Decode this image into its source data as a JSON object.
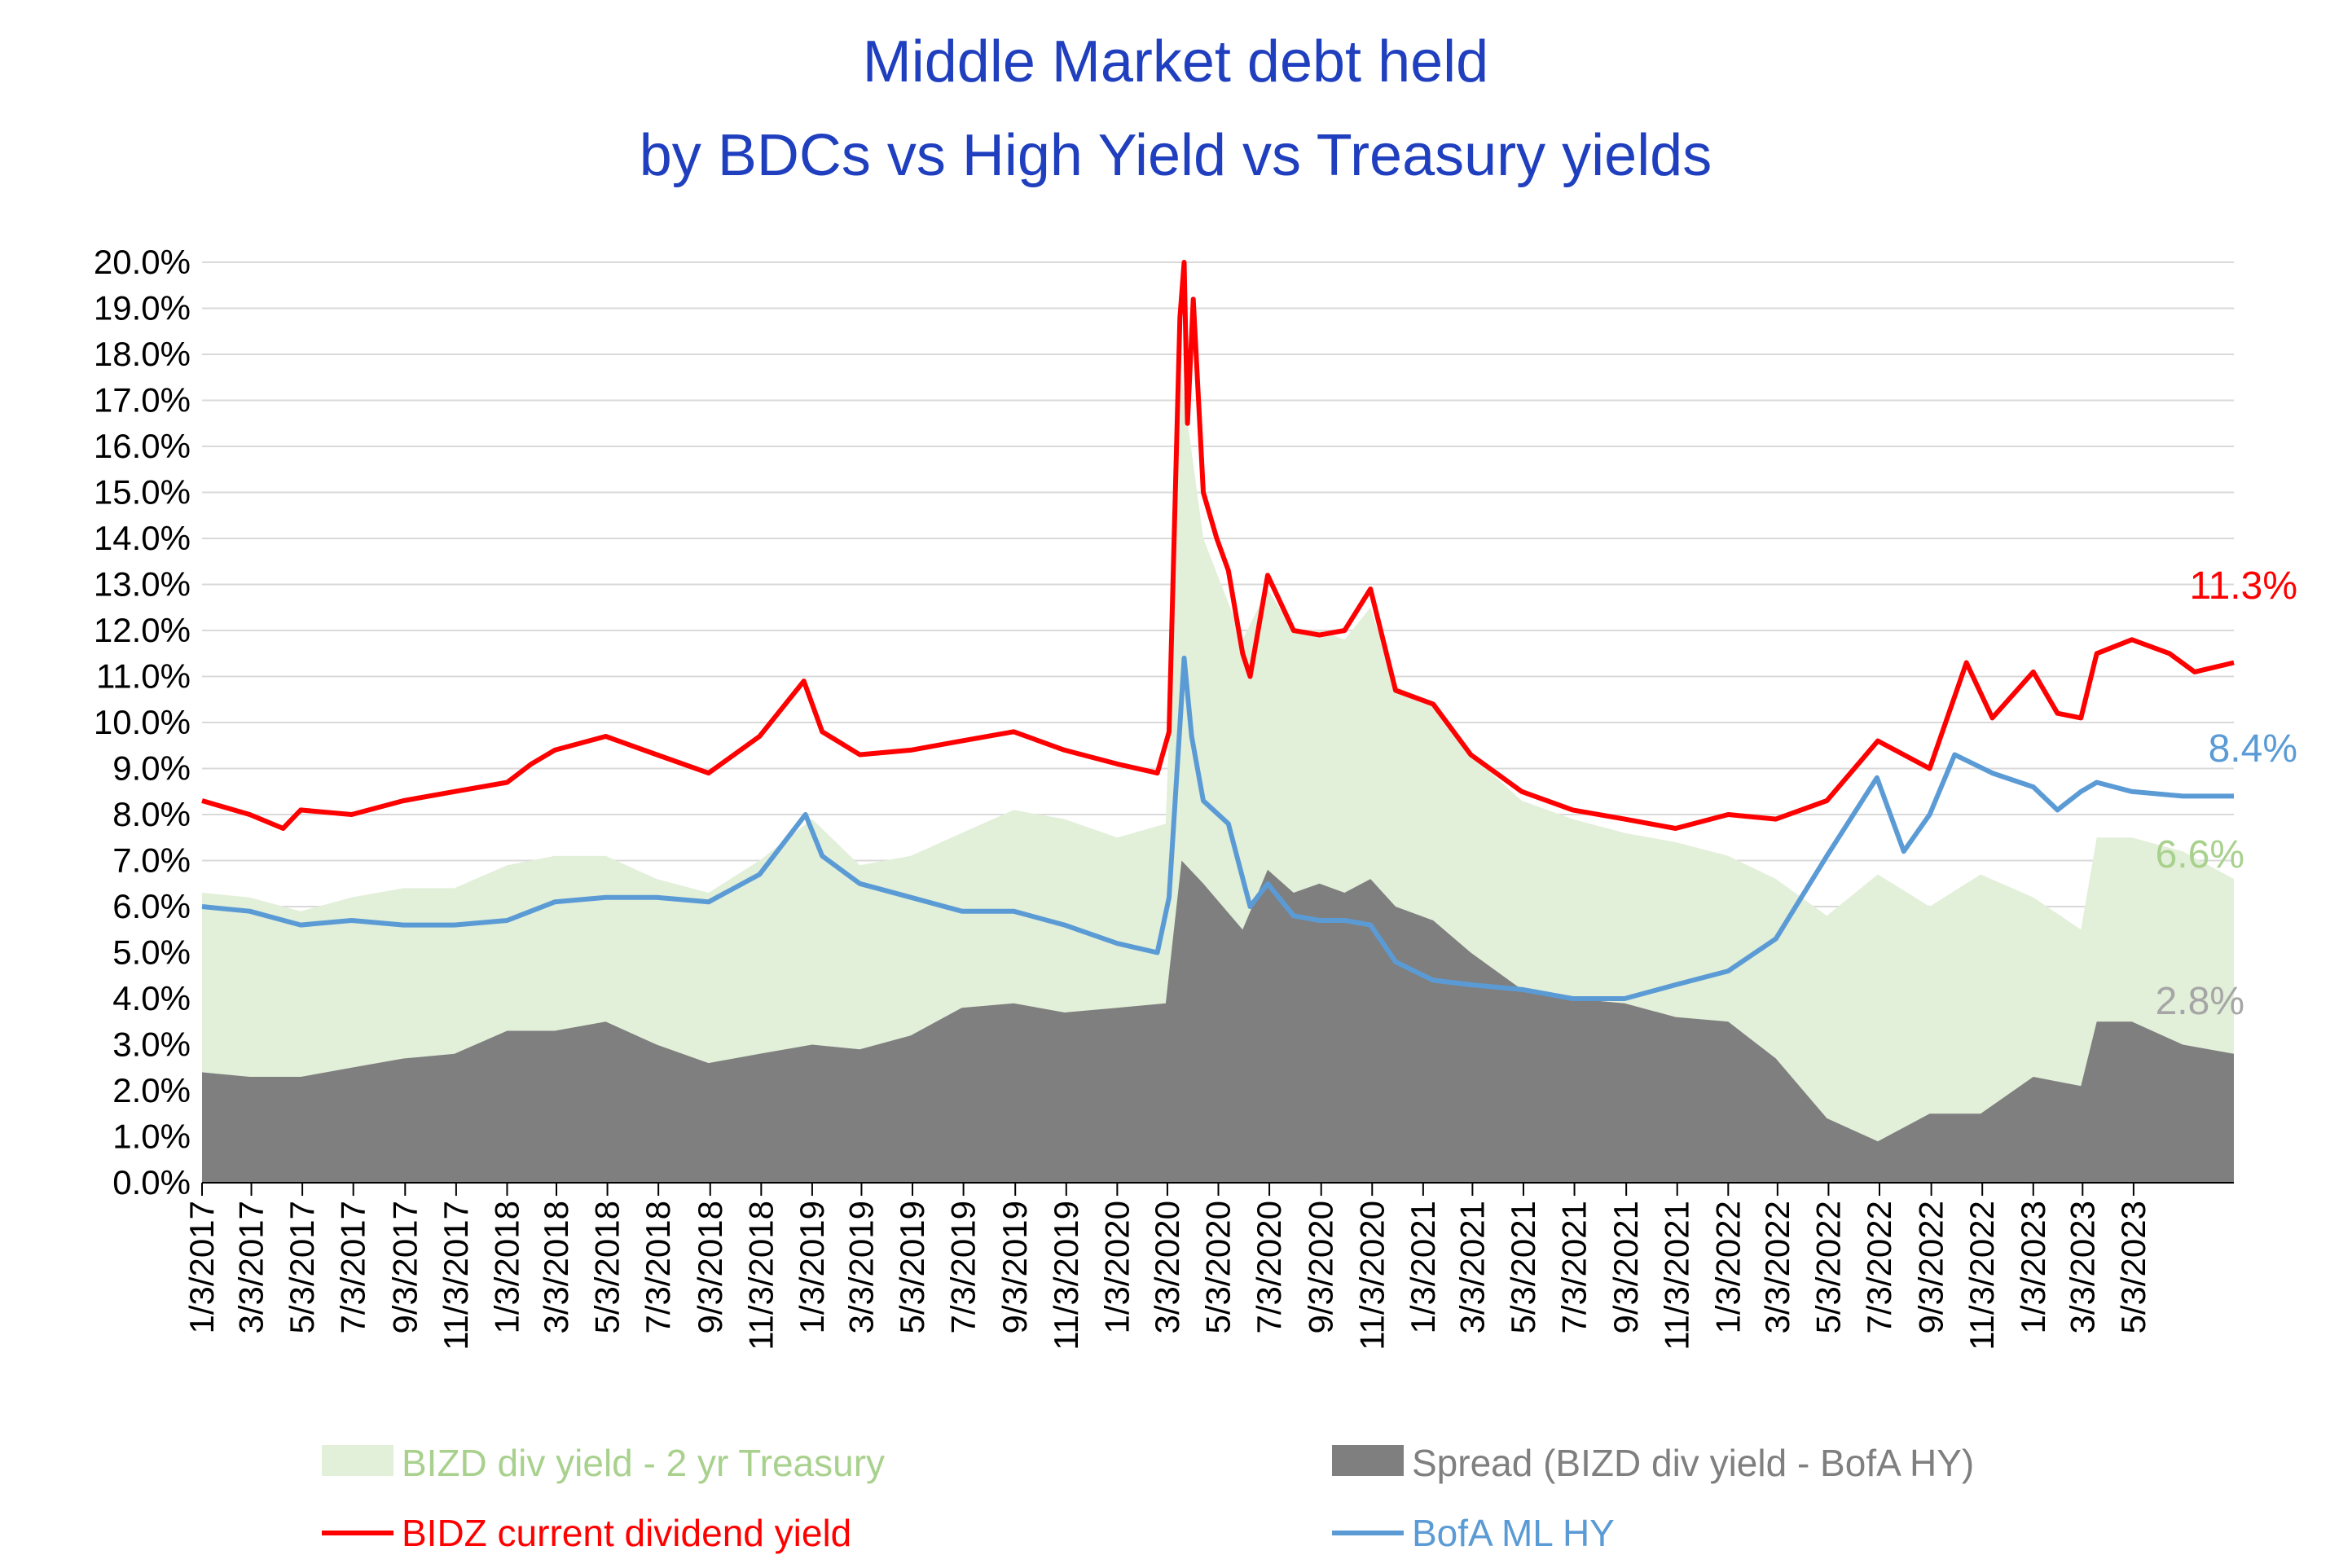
{
  "chart_data": {
    "type": "area",
    "title_lines": [
      "Middle Market debt held",
      "by BDCs vs High Yield vs Treasury yields"
    ],
    "xlabel": "",
    "ylabel": "",
    "ylim": [
      0,
      20
    ],
    "y_ticks": [
      "0.0%",
      "1.0%",
      "2.0%",
      "3.0%",
      "4.0%",
      "5.0%",
      "6.0%",
      "7.0%",
      "8.0%",
      "9.0%",
      "10.0%",
      "11.0%",
      "12.0%",
      "13.0%",
      "14.0%",
      "15.0%",
      "16.0%",
      "17.0%",
      "18.0%",
      "19.0%",
      "20.0%"
    ],
    "x_range": [
      "2017-01-03",
      "2023-08-31"
    ],
    "x_ticks": [
      "1/3/2017",
      "3/3/2017",
      "5/3/2017",
      "7/3/2017",
      "9/3/2017",
      "11/3/2017",
      "1/3/2018",
      "3/3/2018",
      "5/3/2018",
      "7/3/2018",
      "9/3/2018",
      "11/3/2018",
      "1/3/2019",
      "3/3/2019",
      "5/3/2019",
      "7/3/2019",
      "9/3/2019",
      "11/3/2019",
      "1/3/2020",
      "3/3/2020",
      "5/3/2020",
      "7/3/2020",
      "9/3/2020",
      "11/3/2020",
      "1/3/2021",
      "3/3/2021",
      "5/3/2021",
      "7/3/2021",
      "9/3/2021",
      "11/3/2021",
      "1/3/2022",
      "3/3/2022",
      "5/3/2022",
      "7/3/2022",
      "9/3/2022",
      "11/3/2022",
      "1/3/2023",
      "3/3/2023",
      "5/3/2023"
    ],
    "grid": "horizontal",
    "legend_position": "bottom",
    "series": [
      {
        "name": "BIZD div yield - 2 yr Treasury",
        "kind": "area",
        "color": "#e2efd9",
        "end_label": "6.6%",
        "end_label_color": "#a9d18e",
        "points": [
          [
            "2017-01-03",
            6.3
          ],
          [
            "2017-03-01",
            6.2
          ],
          [
            "2017-05-01",
            5.9
          ],
          [
            "2017-07-01",
            6.2
          ],
          [
            "2017-09-01",
            6.4
          ],
          [
            "2017-11-01",
            6.4
          ],
          [
            "2018-01-03",
            6.9
          ],
          [
            "2018-03-01",
            7.1
          ],
          [
            "2018-05-01",
            7.1
          ],
          [
            "2018-07-01",
            6.6
          ],
          [
            "2018-09-01",
            6.3
          ],
          [
            "2018-11-01",
            7.0
          ],
          [
            "2019-01-03",
            7.9
          ],
          [
            "2019-03-01",
            6.9
          ],
          [
            "2019-05-01",
            7.1
          ],
          [
            "2019-07-01",
            7.6
          ],
          [
            "2019-09-01",
            8.1
          ],
          [
            "2019-11-01",
            7.9
          ],
          [
            "2020-01-03",
            7.5
          ],
          [
            "2020-03-01",
            7.8
          ],
          [
            "2020-03-20",
            17.5
          ],
          [
            "2020-04-15",
            14.0
          ],
          [
            "2020-06-01",
            11.8
          ],
          [
            "2020-07-01",
            12.9
          ],
          [
            "2020-08-01",
            12.0
          ],
          [
            "2020-09-01",
            12.0
          ],
          [
            "2020-10-01",
            11.8
          ],
          [
            "2020-11-01",
            12.5
          ],
          [
            "2020-12-01",
            10.8
          ],
          [
            "2021-01-15",
            10.4
          ],
          [
            "2021-03-01",
            9.3
          ],
          [
            "2021-05-01",
            8.3
          ],
          [
            "2021-07-01",
            7.9
          ],
          [
            "2021-09-01",
            7.6
          ],
          [
            "2021-11-01",
            7.4
          ],
          [
            "2022-01-03",
            7.1
          ],
          [
            "2022-03-01",
            6.6
          ],
          [
            "2022-05-01",
            5.8
          ],
          [
            "2022-07-01",
            6.7
          ],
          [
            "2022-09-01",
            6.0
          ],
          [
            "2022-11-01",
            6.7
          ],
          [
            "2023-01-03",
            6.2
          ],
          [
            "2023-03-01",
            5.5
          ],
          [
            "2023-03-20",
            7.5
          ],
          [
            "2023-05-01",
            7.5
          ],
          [
            "2023-07-01",
            7.2
          ],
          [
            "2023-08-31",
            6.6
          ]
        ]
      },
      {
        "name": "Spread (BIZD div yield - BofA HY)",
        "kind": "area",
        "color": "#7f7f7f",
        "end_label": "2.8%",
        "end_label_color": "#a6a6a6",
        "points": [
          [
            "2017-01-03",
            2.4
          ],
          [
            "2017-03-01",
            2.3
          ],
          [
            "2017-05-01",
            2.3
          ],
          [
            "2017-07-01",
            2.5
          ],
          [
            "2017-09-01",
            2.7
          ],
          [
            "2017-11-01",
            2.8
          ],
          [
            "2018-01-03",
            3.3
          ],
          [
            "2018-03-01",
            3.3
          ],
          [
            "2018-05-01",
            3.5
          ],
          [
            "2018-07-01",
            3.0
          ],
          [
            "2018-09-01",
            2.6
          ],
          [
            "2018-11-01",
            2.8
          ],
          [
            "2019-01-03",
            3.0
          ],
          [
            "2019-03-01",
            2.9
          ],
          [
            "2019-05-01",
            3.2
          ],
          [
            "2019-07-01",
            3.8
          ],
          [
            "2019-09-01",
            3.9
          ],
          [
            "2019-11-01",
            3.7
          ],
          [
            "2020-01-03",
            3.8
          ],
          [
            "2020-03-01",
            3.9
          ],
          [
            "2020-03-20",
            7.0
          ],
          [
            "2020-04-15",
            6.5
          ],
          [
            "2020-06-01",
            5.5
          ],
          [
            "2020-07-01",
            6.8
          ],
          [
            "2020-08-01",
            6.3
          ],
          [
            "2020-09-01",
            6.5
          ],
          [
            "2020-10-01",
            6.3
          ],
          [
            "2020-11-01",
            6.6
          ],
          [
            "2020-12-01",
            6.0
          ],
          [
            "2021-01-15",
            5.7
          ],
          [
            "2021-03-01",
            5.0
          ],
          [
            "2021-05-01",
            4.2
          ],
          [
            "2021-07-01",
            4.0
          ],
          [
            "2021-09-01",
            3.9
          ],
          [
            "2021-11-01",
            3.6
          ],
          [
            "2022-01-03",
            3.5
          ],
          [
            "2022-03-01",
            2.7
          ],
          [
            "2022-05-01",
            1.4
          ],
          [
            "2022-07-01",
            0.9
          ],
          [
            "2022-09-01",
            1.5
          ],
          [
            "2022-11-01",
            1.5
          ],
          [
            "2023-01-03",
            2.3
          ],
          [
            "2023-03-01",
            2.1
          ],
          [
            "2023-03-20",
            3.5
          ],
          [
            "2023-05-01",
            3.5
          ],
          [
            "2023-07-01",
            3.0
          ],
          [
            "2023-08-31",
            2.8
          ]
        ]
      },
      {
        "name": "BIDZ current dividend yield",
        "kind": "line",
        "color": "#ff0000",
        "end_label": "11.3%",
        "end_label_color": "#ff0000",
        "points": [
          [
            "2017-01-03",
            8.3
          ],
          [
            "2017-03-01",
            8.0
          ],
          [
            "2017-04-10",
            7.7
          ],
          [
            "2017-05-01",
            8.1
          ],
          [
            "2017-07-01",
            8.0
          ],
          [
            "2017-09-01",
            8.3
          ],
          [
            "2017-11-01",
            8.5
          ],
          [
            "2018-01-03",
            8.7
          ],
          [
            "2018-02-01",
            9.1
          ],
          [
            "2018-03-01",
            9.4
          ],
          [
            "2018-05-01",
            9.7
          ],
          [
            "2018-07-01",
            9.3
          ],
          [
            "2018-09-01",
            8.9
          ],
          [
            "2018-11-01",
            9.7
          ],
          [
            "2018-12-24",
            10.9
          ],
          [
            "2019-01-15",
            9.8
          ],
          [
            "2019-03-01",
            9.3
          ],
          [
            "2019-05-01",
            9.4
          ],
          [
            "2019-07-01",
            9.6
          ],
          [
            "2019-09-01",
            9.8
          ],
          [
            "2019-11-01",
            9.4
          ],
          [
            "2020-01-03",
            9.1
          ],
          [
            "2020-02-20",
            8.9
          ],
          [
            "2020-03-05",
            9.8
          ],
          [
            "2020-03-18",
            18.8
          ],
          [
            "2020-03-23",
            20.0
          ],
          [
            "2020-03-27",
            16.5
          ],
          [
            "2020-04-03",
            19.2
          ],
          [
            "2020-04-15",
            15.0
          ],
          [
            "2020-05-01",
            14.0
          ],
          [
            "2020-05-15",
            13.3
          ],
          [
            "2020-06-01",
            11.5
          ],
          [
            "2020-06-10",
            11.0
          ],
          [
            "2020-07-01",
            13.2
          ],
          [
            "2020-08-01",
            12.0
          ],
          [
            "2020-09-01",
            11.9
          ],
          [
            "2020-10-01",
            12.0
          ],
          [
            "2020-11-01",
            12.9
          ],
          [
            "2020-12-01",
            10.7
          ],
          [
            "2021-01-15",
            10.4
          ],
          [
            "2021-03-01",
            9.3
          ],
          [
            "2021-05-01",
            8.5
          ],
          [
            "2021-07-01",
            8.1
          ],
          [
            "2021-09-01",
            7.9
          ],
          [
            "2021-11-01",
            7.7
          ],
          [
            "2022-01-03",
            8.0
          ],
          [
            "2022-03-01",
            7.9
          ],
          [
            "2022-05-01",
            8.3
          ],
          [
            "2022-07-01",
            9.6
          ],
          [
            "2022-09-01",
            9.0
          ],
          [
            "2022-10-15",
            11.3
          ],
          [
            "2022-11-15",
            10.1
          ],
          [
            "2023-01-03",
            11.1
          ],
          [
            "2023-02-01",
            10.2
          ],
          [
            "2023-03-01",
            10.1
          ],
          [
            "2023-03-20",
            11.5
          ],
          [
            "2023-05-01",
            11.8
          ],
          [
            "2023-06-15",
            11.5
          ],
          [
            "2023-07-15",
            11.1
          ],
          [
            "2023-08-31",
            11.3
          ]
        ]
      },
      {
        "name": "BofA ML HY",
        "kind": "line",
        "color": "#5b9bd5",
        "end_label": "8.4%",
        "end_label_color": "#5b9bd5",
        "points": [
          [
            "2017-01-03",
            6.0
          ],
          [
            "2017-03-01",
            5.9
          ],
          [
            "2017-05-01",
            5.6
          ],
          [
            "2017-07-01",
            5.7
          ],
          [
            "2017-09-01",
            5.6
          ],
          [
            "2017-11-01",
            5.6
          ],
          [
            "2018-01-03",
            5.7
          ],
          [
            "2018-03-01",
            6.1
          ],
          [
            "2018-05-01",
            6.2
          ],
          [
            "2018-07-01",
            6.2
          ],
          [
            "2018-09-01",
            6.1
          ],
          [
            "2018-11-01",
            6.7
          ],
          [
            "2018-12-26",
            8.0
          ],
          [
            "2019-01-15",
            7.1
          ],
          [
            "2019-03-01",
            6.5
          ],
          [
            "2019-05-01",
            6.2
          ],
          [
            "2019-07-01",
            5.9
          ],
          [
            "2019-09-01",
            5.9
          ],
          [
            "2019-11-01",
            5.6
          ],
          [
            "2020-01-03",
            5.2
          ],
          [
            "2020-02-20",
            5.0
          ],
          [
            "2020-03-05",
            6.2
          ],
          [
            "2020-03-23",
            11.4
          ],
          [
            "2020-04-01",
            9.7
          ],
          [
            "2020-04-15",
            8.3
          ],
          [
            "2020-05-15",
            7.8
          ],
          [
            "2020-06-10",
            6.0
          ],
          [
            "2020-07-01",
            6.5
          ],
          [
            "2020-08-01",
            5.8
          ],
          [
            "2020-09-01",
            5.7
          ],
          [
            "2020-10-01",
            5.7
          ],
          [
            "2020-11-01",
            5.6
          ],
          [
            "2020-12-01",
            4.8
          ],
          [
            "2021-01-15",
            4.4
          ],
          [
            "2021-03-01",
            4.3
          ],
          [
            "2021-05-01",
            4.2
          ],
          [
            "2021-07-01",
            4.0
          ],
          [
            "2021-09-01",
            4.0
          ],
          [
            "2021-11-01",
            4.3
          ],
          [
            "2022-01-03",
            4.6
          ],
          [
            "2022-03-01",
            5.3
          ],
          [
            "2022-05-01",
            7.1
          ],
          [
            "2022-06-30",
            8.8
          ],
          [
            "2022-08-01",
            7.2
          ],
          [
            "2022-09-01",
            8.0
          ],
          [
            "2022-10-01",
            9.3
          ],
          [
            "2022-11-15",
            8.9
          ],
          [
            "2023-01-03",
            8.6
          ],
          [
            "2023-02-01",
            8.1
          ],
          [
            "2023-03-01",
            8.5
          ],
          [
            "2023-03-20",
            8.7
          ],
          [
            "2023-05-01",
            8.5
          ],
          [
            "2023-07-01",
            8.4
          ],
          [
            "2023-08-31",
            8.4
          ]
        ]
      }
    ]
  }
}
